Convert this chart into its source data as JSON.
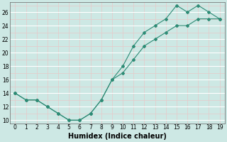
{
  "line1_x": [
    0,
    1,
    2,
    3,
    4,
    5,
    6,
    7,
    8,
    9,
    10,
    11,
    12,
    13,
    14,
    15,
    16,
    17,
    18,
    19
  ],
  "line1_y": [
    14,
    13,
    13,
    12,
    11,
    10,
    10,
    11,
    13,
    16,
    18,
    21,
    23,
    24,
    25,
    27,
    26,
    27,
    26,
    25
  ],
  "line2_x": [
    0,
    1,
    2,
    3,
    4,
    5,
    6,
    7,
    8,
    9,
    10,
    11,
    12,
    13,
    14,
    15,
    16,
    17,
    18,
    19
  ],
  "line2_y": [
    14,
    13,
    13,
    12,
    11,
    10,
    10,
    11,
    13,
    16,
    17,
    19,
    21,
    22,
    23,
    24,
    24,
    25,
    25,
    25
  ],
  "line_color": "#2e8b75",
  "bg_color": "#cde8e4",
  "grid_white": "#ffffff",
  "grid_pink": "#e8c8c8",
  "xlabel": "Humidex (Indice chaleur)",
  "ylim": [
    9.5,
    27.5
  ],
  "xlim": [
    -0.5,
    19.5
  ],
  "yticks": [
    10,
    12,
    14,
    16,
    18,
    20,
    22,
    24,
    26
  ],
  "xticks": [
    0,
    1,
    2,
    3,
    4,
    5,
    6,
    7,
    8,
    9,
    10,
    11,
    12,
    13,
    14,
    15,
    16,
    17,
    18,
    19
  ],
  "tick_fontsize": 5.5,
  "xlabel_fontsize": 7.0,
  "marker": "D",
  "markersize": 2.0,
  "linewidth": 0.8
}
